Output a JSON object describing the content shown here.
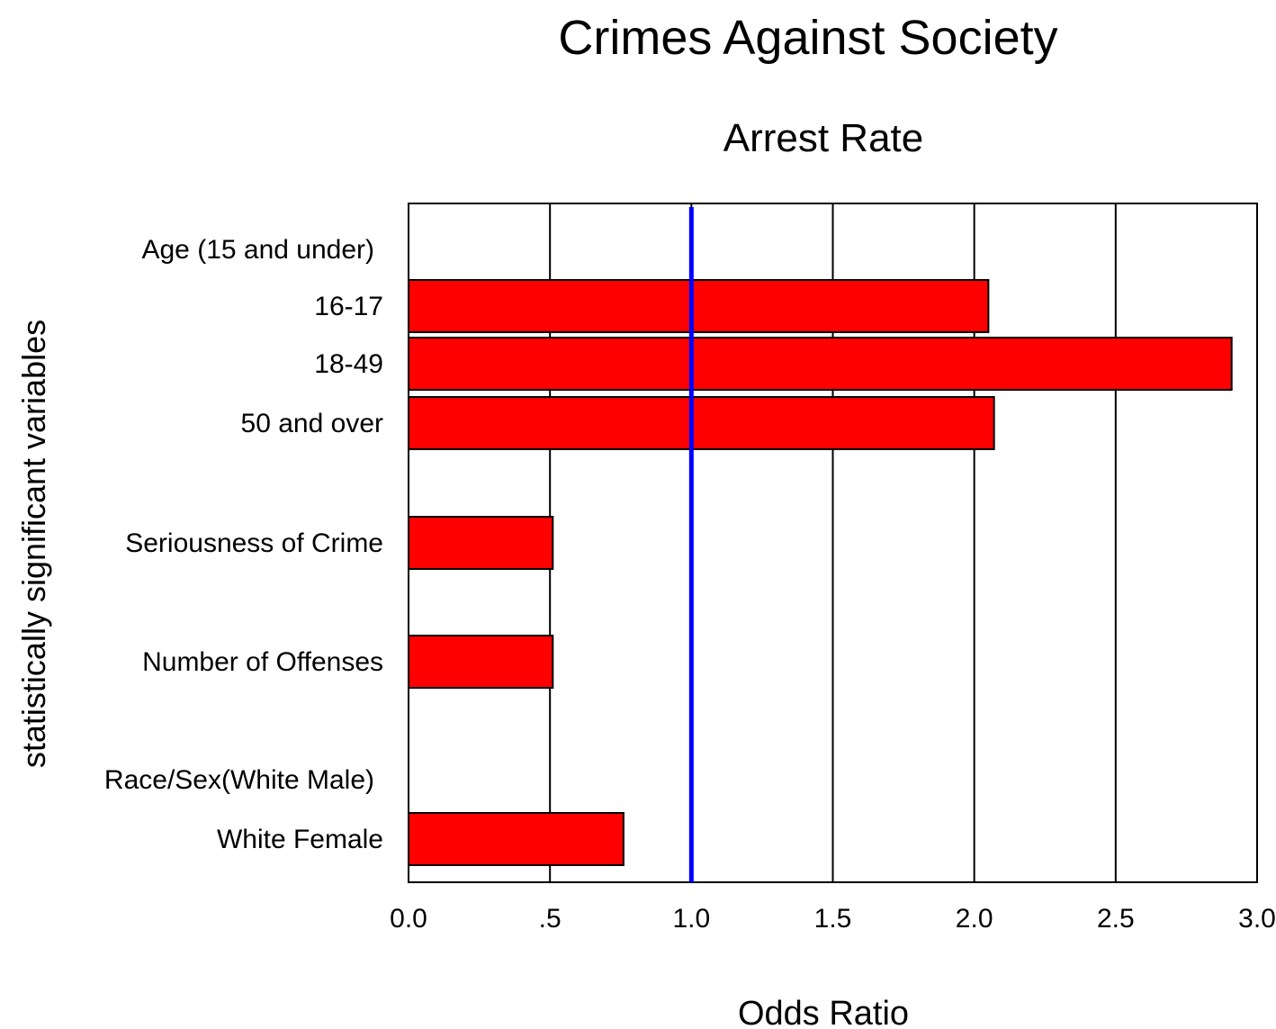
{
  "chart_data": {
    "type": "bar",
    "orientation": "horizontal",
    "title": "Crimes Against Society",
    "subtitle": "Arrest Rate",
    "xlabel": "Odds Ratio",
    "ylabel": "statistically significant variables",
    "xlim": [
      0,
      3.0
    ],
    "xticks": [
      {
        "value": 0.0,
        "label": "0.0"
      },
      {
        "value": 0.5,
        "label": ".5"
      },
      {
        "value": 1.0,
        "label": "1.0"
      },
      {
        "value": 1.5,
        "label": "1.5"
      },
      {
        "value": 2.0,
        "label": "2.0"
      },
      {
        "value": 2.5,
        "label": "2.5"
      },
      {
        "value": 3.0,
        "label": "3.0"
      }
    ],
    "grid": "vertical",
    "reference_line": {
      "value": 1.0,
      "color": "#0000ff"
    },
    "bar_color": "#ff0000",
    "categories": [
      {
        "label": "Age (15 and under)",
        "value": null
      },
      {
        "label": "16-17",
        "value": 2.05
      },
      {
        "label": "18-49",
        "value": 2.91
      },
      {
        "label": "50 and over",
        "value": 2.07
      },
      {
        "label": "Seriousness of Crime",
        "value": 0.51
      },
      {
        "label": "Number of  Offenses",
        "value": 0.51
      },
      {
        "label": "Race/Sex(White Male)",
        "value": null
      },
      {
        "label": "White Female",
        "value": 0.76
      }
    ]
  }
}
